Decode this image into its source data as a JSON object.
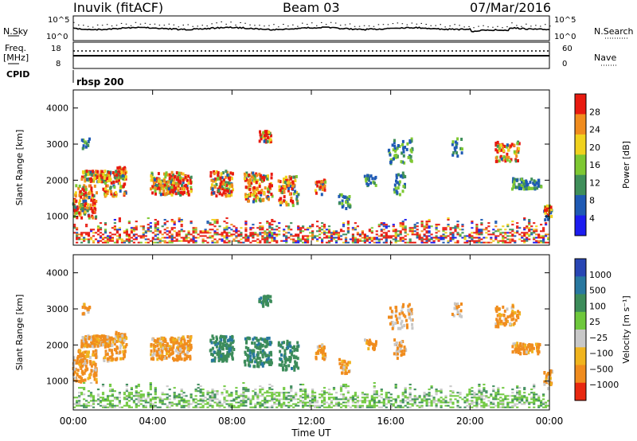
{
  "header": {
    "station": "Inuvik (fitACF)",
    "beam": "Beam 03",
    "date": "07/Mar/2016"
  },
  "strip_labels": {
    "nsky": "N.Sky",
    "nsearch": "N.Search",
    "freq_top": "Freq.",
    "freq_unit": "[MHz]",
    "nave": "Nave",
    "cpid": "CPID",
    "cpid_value": "rbsp 200",
    "noise_ticks": [
      "10^5",
      "10^0"
    ],
    "freq_ticks": [
      "18",
      "8"
    ],
    "nave_ticks": [
      "60",
      "0"
    ]
  },
  "chart_data": [
    {
      "type": "heatmap",
      "panel": "power",
      "xlabel": "",
      "ylabel": "Slant Range [km]",
      "yticks": [
        "1000",
        "2000",
        "3000",
        "4000"
      ],
      "ylim": [
        200,
        4500
      ],
      "colorbar_label": "Power [dB]",
      "colorbar_ticks": [
        "4",
        "8",
        "12",
        "16",
        "20",
        "24",
        "28"
      ],
      "colors": [
        "#1d1df0",
        "#1f5ab4",
        "#3f8f5a",
        "#7ec832",
        "#f0d21e",
        "#f08c1e",
        "#e81a10"
      ]
    },
    {
      "type": "heatmap",
      "panel": "velocity",
      "xlabel": "Time UT",
      "ylabel": "Slant Range [km]",
      "yticks": [
        "1000",
        "2000",
        "3000",
        "4000"
      ],
      "ylim": [
        200,
        4500
      ],
      "xticks": [
        "00:00",
        "04:00",
        "08:00",
        "12:00",
        "16:00",
        "20:00",
        "00:00"
      ],
      "colorbar_label": "Velocity [m s⁻¹]",
      "colorbar_ticks": [
        "1000",
        "500",
        "100",
        "25",
        "−25",
        "−100",
        "−500",
        "−1000"
      ],
      "colors": [
        "#2846b4",
        "#2878a0",
        "#3c8c5a",
        "#6ec83c",
        "#c8c8c8",
        "#f0b41e",
        "#f08c1e",
        "#e82810"
      ]
    }
  ]
}
